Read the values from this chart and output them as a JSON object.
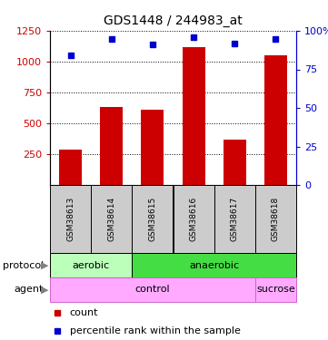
{
  "title": "GDS1448 / 244983_at",
  "samples": [
    "GSM38613",
    "GSM38614",
    "GSM38615",
    "GSM38616",
    "GSM38617",
    "GSM38618"
  ],
  "counts": [
    290,
    630,
    610,
    1120,
    370,
    1055
  ],
  "percentile_ranks": [
    84,
    95,
    91,
    96,
    92,
    95
  ],
  "ylim_left": [
    0,
    1250
  ],
  "ylim_right": [
    0,
    100
  ],
  "bar_color": "#cc0000",
  "dot_color": "#0000cc",
  "protocol_labels": [
    [
      "aerobic",
      0,
      2
    ],
    [
      "anaerobic",
      2,
      6
    ]
  ],
  "agent_labels": [
    [
      "control",
      0,
      5
    ],
    [
      "sucrose",
      5,
      6
    ]
  ],
  "protocol_colors": [
    "#bbffbb",
    "#44dd44"
  ],
  "agent_color": "#ffaaff",
  "agent_border_color": "#cc66cc",
  "sample_bg_color": "#cccccc",
  "legend_count_color": "#cc0000",
  "legend_pct_color": "#0000cc",
  "title_fontsize": 10,
  "label_fontsize": 8,
  "sample_fontsize": 6.5
}
